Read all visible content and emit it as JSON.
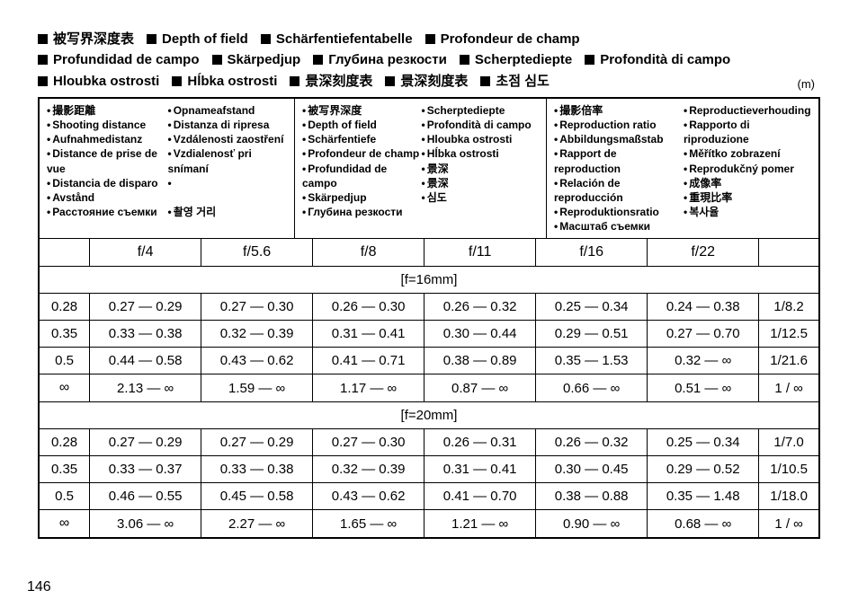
{
  "page_number": "146",
  "unit_label": "(m)",
  "title_rows": [
    [
      "被写界深度表",
      "Depth of field",
      "Schärfentiefentabelle",
      "Profondeur de champ"
    ],
    [
      "Profundidad de campo",
      "Skärpedjup",
      "Глубина резкости",
      "Scherptediepte",
      "Profondità di campo"
    ],
    [
      "Hloubka ostrosti",
      "Hĺbka ostrosti",
      "景深刻度表",
      "景深刻度表",
      "초점 심도"
    ]
  ],
  "header_groups": [
    {
      "left": [
        "撮影距離",
        "Shooting distance",
        "Aufnahmedistanz",
        "Distance de prise de vue",
        "Distancia de disparo",
        "Avstånd",
        "Расстояние съемки"
      ],
      "right": [
        "Opnameafstand",
        "Distanza di ripresa",
        "Vzdálenosti zaostření",
        "Vzdialenosť pri snímaní",
        "",
        "",
        "촬영 거리"
      ]
    },
    {
      "left": [
        "被写界深度",
        "Depth of field",
        "Schärfentiefe",
        "Profondeur de champ",
        "Profundidad de campo",
        "Skärpedjup",
        "Глубина резкости"
      ],
      "right": [
        "Scherptediepte",
        "Profondità di campo",
        "Hloubka ostrosti",
        "Hĺbka ostrosti",
        "景深",
        "景深",
        "심도"
      ]
    },
    {
      "left": [
        "撮影倍率",
        "Reproduction ratio",
        "Abbildungsmaßstab",
        "Rapport de reproduction",
        "Relación de reproducción",
        "Reproduktionsratio",
        "Масштаб съемки"
      ],
      "right": [
        "Reproductieverhouding",
        "Rapporto di riproduzione",
        "Měřítko zobrazení",
        "Reprodukčný pomer",
        "成像率",
        "重現比率",
        "복사율"
      ]
    }
  ],
  "apertures": [
    "f/4",
    "f/5.6",
    "f/8",
    "f/11",
    "f/16",
    "f/22"
  ],
  "sections": [
    {
      "label": "[f=16mm]",
      "rows": [
        {
          "d": "0.28",
          "v": [
            "0.27 — 0.29",
            "0.27 — 0.30",
            "0.26 — 0.30",
            "0.26 — 0.32",
            "0.25 — 0.34",
            "0.24 — 0.38"
          ],
          "r": "1/8.2"
        },
        {
          "d": "0.35",
          "v": [
            "0.33 — 0.38",
            "0.32 — 0.39",
            "0.31 — 0.41",
            "0.30 — 0.44",
            "0.29 — 0.51",
            "0.27 — 0.70"
          ],
          "r": "1/12.5"
        },
        {
          "d": "0.5",
          "v": [
            "0.44 — 0.58",
            "0.43 — 0.62",
            "0.41 — 0.71",
            "0.38 — 0.89",
            "0.35 — 1.53",
            "0.32 — ∞"
          ],
          "r": "1/21.6"
        },
        {
          "d": "∞",
          "v": [
            "2.13 — ∞",
            "1.59 — ∞",
            "1.17 — ∞",
            "0.87 — ∞",
            "0.66 — ∞",
            "0.51 — ∞"
          ],
          "r": "1 / ∞"
        }
      ]
    },
    {
      "label": "[f=20mm]",
      "rows": [
        {
          "d": "0.28",
          "v": [
            "0.27 — 0.29",
            "0.27 — 0.29",
            "0.27 — 0.30",
            "0.26 — 0.31",
            "0.26 — 0.32",
            "0.25 — 0.34"
          ],
          "r": "1/7.0"
        },
        {
          "d": "0.35",
          "v": [
            "0.33 — 0.37",
            "0.33 — 0.38",
            "0.32 — 0.39",
            "0.31 — 0.41",
            "0.30 — 0.45",
            "0.29 — 0.52"
          ],
          "r": "1/10.5"
        },
        {
          "d": "0.5",
          "v": [
            "0.46 — 0.55",
            "0.45 — 0.58",
            "0.43 — 0.62",
            "0.41 — 0.70",
            "0.38 — 0.88",
            "0.35 — 1.48"
          ],
          "r": "1/18.0"
        },
        {
          "d": "∞",
          "v": [
            "3.06 — ∞",
            "2.27 — ∞",
            "1.65 —  ∞",
            "1.21 — ∞",
            "0.90 — ∞",
            "0.68 — ∞"
          ],
          "r": "1 / ∞"
        }
      ]
    }
  ]
}
